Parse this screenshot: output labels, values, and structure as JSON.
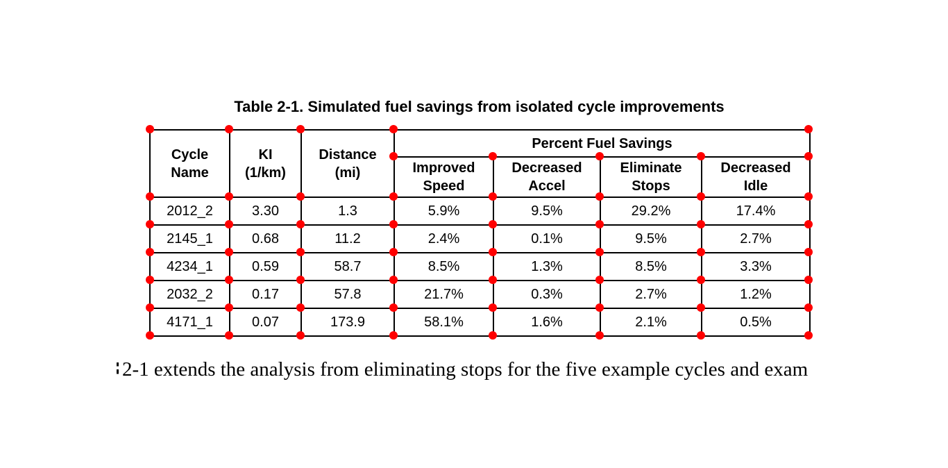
{
  "title": "Table 2-1. Simulated fuel savings from isolated cycle improvements",
  "table": {
    "group_header": "Percent Fuel Savings",
    "col_headers": [
      "Cycle\nName",
      "KI\n(1/km)",
      "Distance\n(mi)",
      "Improved\nSpeed",
      "Decreased\nAccel",
      "Eliminate\nStops",
      "Decreased\nIdle"
    ],
    "rows": [
      [
        "2012_2",
        "3.30",
        "1.3",
        "5.9%",
        "9.5%",
        "29.2%",
        "17.4%"
      ],
      [
        "2145_1",
        "0.68",
        "11.2",
        "2.4%",
        "0.1%",
        "9.5%",
        "2.7%"
      ],
      [
        "4234_1",
        "0.59",
        "58.7",
        "8.5%",
        "1.3%",
        "8.5%",
        "3.3%"
      ],
      [
        "2032_2",
        "0.17",
        "57.8",
        "21.7%",
        "0.3%",
        "2.7%",
        "1.2%"
      ],
      [
        "4171_1",
        "0.07",
        "173.9",
        "58.1%",
        "1.6%",
        "2.1%",
        "0.5%"
      ]
    ]
  },
  "caption": {
    "text": "2-1 extends the analysis from eliminating stops for the five example cycles and exam"
  },
  "markers": {
    "color": "#ff0000"
  }
}
